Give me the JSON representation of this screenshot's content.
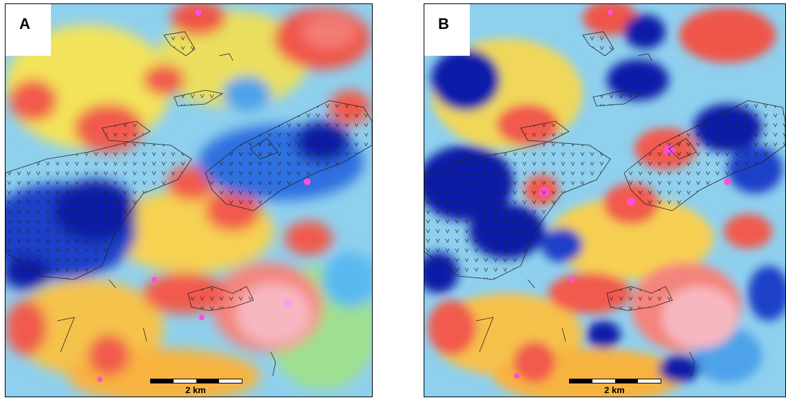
{
  "panels": [
    {
      "label": "A",
      "scale_label": "2 km"
    },
    {
      "label": "B",
      "scale_label": "2 km"
    }
  ],
  "colors": {
    "high": "#ff5f5f",
    "peak": "#ff4fd8",
    "mid": "#f8d24a",
    "low": "#58b9f0",
    "very_low": "#0a1ba8",
    "background": "#9fd6ef"
  }
}
